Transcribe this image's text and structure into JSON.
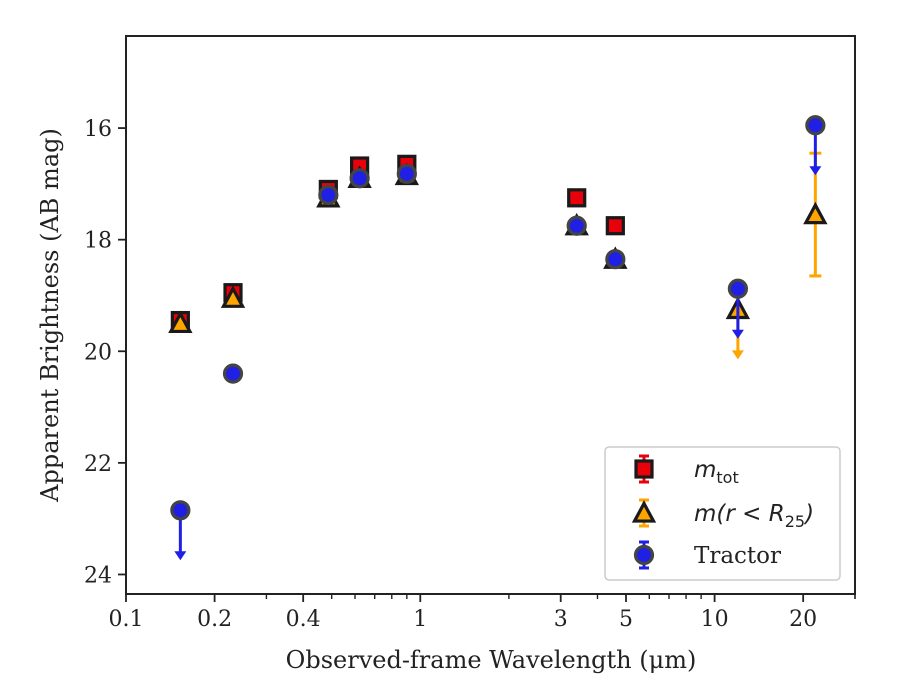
{
  "chart_data": {
    "type": "scatter",
    "xlabel": "Observed-frame Wavelength (μm)",
    "ylabel": "Apparent Brightness (AB mag)",
    "xscale": "log",
    "xlim": [
      0.1,
      30
    ],
    "ylim": [
      24.35,
      14.35
    ],
    "y_inverted": true,
    "xticks": [
      {
        "value": 0.1,
        "label": "0.1"
      },
      {
        "value": 0.2,
        "label": "0.2"
      },
      {
        "value": 0.4,
        "label": "0.4"
      },
      {
        "value": 1,
        "label": "1"
      },
      {
        "value": 3,
        "label": "3"
      },
      {
        "value": 5,
        "label": "5"
      },
      {
        "value": 10,
        "label": "10"
      },
      {
        "value": 20,
        "label": "20"
      }
    ],
    "yticks": [
      {
        "value": 16,
        "label": "16"
      },
      {
        "value": 18,
        "label": "18"
      },
      {
        "value": 20,
        "label": "20"
      },
      {
        "value": 22,
        "label": "22"
      },
      {
        "value": 24,
        "label": "24"
      }
    ],
    "legend_position": "lower-right",
    "series": [
      {
        "name": "m_tot",
        "legend_label": {
          "base": "m",
          "sub": "tot"
        },
        "marker": "square",
        "color": "#e8000b",
        "edge_color": "#1a1a1a",
        "points": [
          {
            "x": 0.153,
            "y": 19.45
          },
          {
            "x": 0.231,
            "y": 18.95
          },
          {
            "x": 0.487,
            "y": 17.1
          },
          {
            "x": 0.622,
            "y": 16.68
          },
          {
            "x": 0.9,
            "y": 16.65
          },
          {
            "x": 3.4,
            "y": 17.25
          },
          {
            "x": 4.6,
            "y": 17.75
          }
        ]
      },
      {
        "name": "m(r < R25)",
        "legend_label": {
          "base": "m(r < R",
          "sub": "25",
          "tail": ")"
        },
        "marker": "triangle",
        "color": "#ffa500",
        "edge_color": "#1a1a1a",
        "points": [
          {
            "x": 0.153,
            "y": 19.5
          },
          {
            "x": 0.231,
            "y": 19.05
          },
          {
            "x": 0.487,
            "y": 17.25
          },
          {
            "x": 0.622,
            "y": 16.9
          },
          {
            "x": 0.9,
            "y": 16.85
          },
          {
            "x": 3.4,
            "y": 17.75
          },
          {
            "x": 4.6,
            "y": 18.35
          },
          {
            "x": 12.0,
            "y": 19.25,
            "upper_limit": true
          },
          {
            "x": 22.0,
            "y": 17.55,
            "err_low": 1.1,
            "err_high": 1.1
          }
        ]
      },
      {
        "name": "Tractor",
        "legend_label": {
          "base": "Tractor"
        },
        "marker": "circle",
        "color": "#1f1fe6",
        "edge_color": "#444444",
        "points": [
          {
            "x": 0.153,
            "y": 22.85,
            "upper_limit": true
          },
          {
            "x": 0.231,
            "y": 20.4
          },
          {
            "x": 0.487,
            "y": 17.2
          },
          {
            "x": 0.622,
            "y": 16.9
          },
          {
            "x": 0.9,
            "y": 16.82
          },
          {
            "x": 3.4,
            "y": 17.75
          },
          {
            "x": 4.6,
            "y": 18.35
          },
          {
            "x": 12.0,
            "y": 18.88,
            "upper_limit": true
          },
          {
            "x": 22.0,
            "y": 15.95,
            "upper_limit": true
          }
        ]
      }
    ]
  }
}
